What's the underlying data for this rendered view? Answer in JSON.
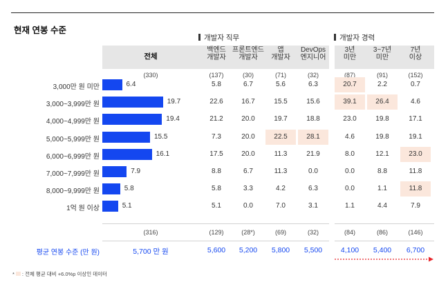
{
  "title": "현재 연봉 수준",
  "groups": {
    "job": "개발자 직무",
    "career": "개발자 경력"
  },
  "total_header": "전체",
  "columns": [
    {
      "key": "be",
      "label_lines": [
        "백엔드",
        "개발자"
      ]
    },
    {
      "key": "fe",
      "label_lines": [
        "프론트엔드",
        "개발자"
      ]
    },
    {
      "key": "app",
      "label_lines": [
        "앱",
        "개발자"
      ]
    },
    {
      "key": "ops",
      "label_lines": [
        "DevOps",
        "엔지니어"
      ]
    },
    {
      "key": "c1",
      "label_lines": [
        "3년",
        "미만"
      ]
    },
    {
      "key": "c2",
      "label_lines": [
        "3~7년",
        "미만"
      ]
    },
    {
      "key": "c3",
      "label_lines": [
        "7년",
        "이상"
      ]
    }
  ],
  "counts_top": {
    "total": "(330)",
    "cols": [
      "(137)",
      "(30)",
      "(71)",
      "(32)",
      "(87)",
      "(91)",
      "(152)"
    ]
  },
  "counts_bottom": {
    "total": "(316)",
    "cols": [
      "(129)",
      "(28*)",
      "(69)",
      "(32)",
      "(84)",
      "(86)",
      "(146)"
    ]
  },
  "average": {
    "label": "평균 연봉 수준 (만 원)",
    "total": "5,700 만 원",
    "cols": [
      "5,600",
      "5,200",
      "5,800",
      "5,500",
      "4,100",
      "5,400",
      "6,700"
    ]
  },
  "footnote": {
    "prefix": "*",
    "text": ": 전체 평균 대비 +6.0%p 이상인 데이터"
  },
  "colors": {
    "bar": "#1447f0",
    "highlight": "#fbe7dc",
    "average_text": "#1447f0",
    "arrow": "#e8262b"
  },
  "chart_data": {
    "type": "bar",
    "orientation": "horizontal",
    "unit": "%",
    "categories": [
      "3,000만 원 미만",
      "3,000~3,999만 원",
      "4,000~4,999만 원",
      "5,000~5,999만 원",
      "6,000~6,999만 원",
      "7,000~7,999만 원",
      "8,000~9,999만 원",
      "1억 원 이상"
    ],
    "values": [
      6.4,
      19.7,
      19.4,
      15.5,
      16.1,
      7.9,
      5.8,
      5.1
    ],
    "xlim": [
      0,
      20
    ]
  },
  "table": [
    {
      "label": "3,000만 원 미만",
      "cells": [
        "5.8",
        "6.7",
        "5.6",
        "6.3",
        "20.7",
        "2.2",
        "0.7"
      ],
      "highlight": [
        false,
        false,
        false,
        false,
        true,
        false,
        false
      ]
    },
    {
      "label": "3,000~3,999만 원",
      "cells": [
        "22.6",
        "16.7",
        "15.5",
        "15.6",
        "39.1",
        "26.4",
        "4.6"
      ],
      "highlight": [
        false,
        false,
        false,
        false,
        true,
        true,
        false
      ]
    },
    {
      "label": "4,000~4,999만 원",
      "cells": [
        "21.2",
        "20.0",
        "19.7",
        "18.8",
        "23.0",
        "19.8",
        "17.1"
      ],
      "highlight": [
        false,
        false,
        false,
        false,
        false,
        false,
        false
      ]
    },
    {
      "label": "5,000~5,999만 원",
      "cells": [
        "7.3",
        "20.0",
        "22.5",
        "28.1",
        "4.6",
        "19.8",
        "19.1"
      ],
      "highlight": [
        false,
        false,
        true,
        true,
        false,
        false,
        false
      ]
    },
    {
      "label": "6,000~6,999만 원",
      "cells": [
        "17.5",
        "20.0",
        "11.3",
        "21.9",
        "8.0",
        "12.1",
        "23.0"
      ],
      "highlight": [
        false,
        false,
        false,
        false,
        false,
        false,
        true
      ]
    },
    {
      "label": "7,000~7,999만 원",
      "cells": [
        "8.8",
        "6.7",
        "11.3",
        "0.0",
        "0.0",
        "8.8",
        "11.8"
      ],
      "highlight": [
        false,
        false,
        false,
        false,
        false,
        false,
        false
      ]
    },
    {
      "label": "8,000~9,999만 원",
      "cells": [
        "5.8",
        "3.3",
        "4.2",
        "6.3",
        "0.0",
        "1.1",
        "11.8"
      ],
      "highlight": [
        false,
        false,
        false,
        false,
        false,
        false,
        true
      ]
    },
    {
      "label": "1억 원 이상",
      "cells": [
        "5.1",
        "0.0",
        "7.0",
        "3.1",
        "1.1",
        "4.4",
        "7.9"
      ],
      "highlight": [
        false,
        false,
        false,
        false,
        false,
        false,
        false
      ]
    }
  ]
}
